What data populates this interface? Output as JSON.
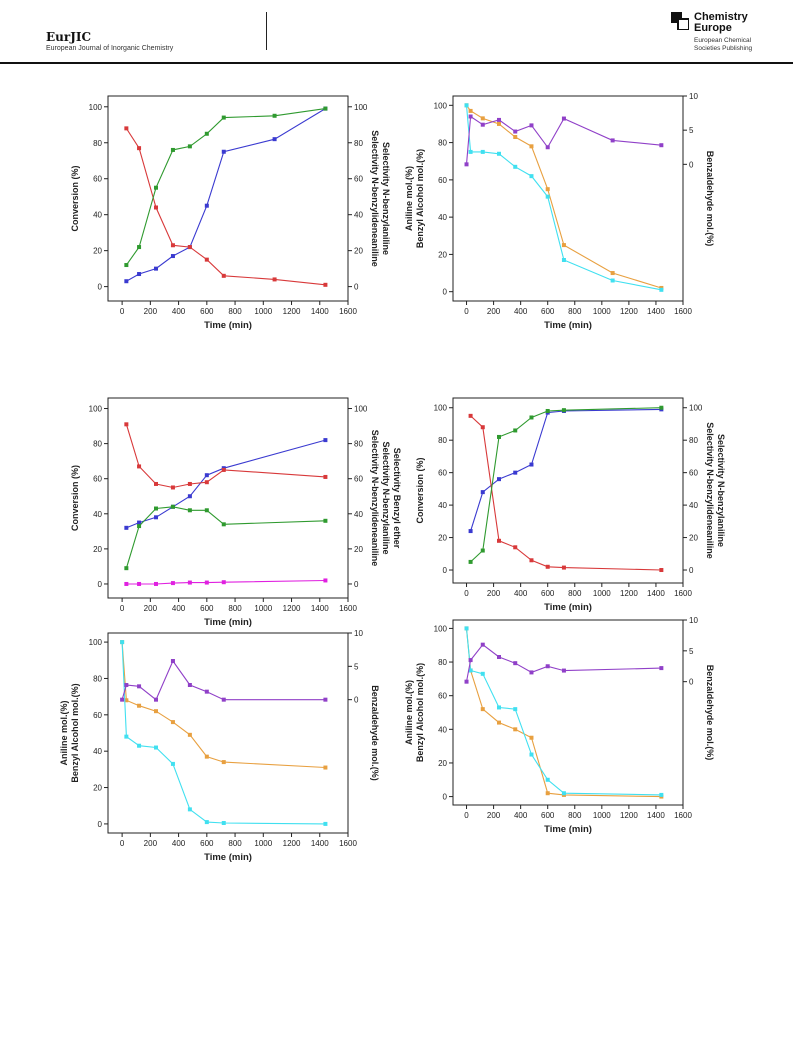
{
  "header": {
    "brand": "EurJIC",
    "subtitle": "European Journal of Inorganic Chemistry",
    "publisher_title_line1": "Chemistry",
    "publisher_title_line2": "Europe",
    "publisher_sub_line1": "European Chemical",
    "publisher_sub_line2": "Societies Publishing"
  },
  "colors": {
    "conversion": "#3a3ad0",
    "n_benzylideneaniline": "#d8393a",
    "n_benzylaniline": "#2f9a2f",
    "benzyl_ether": "#e020e0",
    "aniline": "#e8a040",
    "benzyl_alcohol": "#40e0f0",
    "benzaldehyde": "#9040c8"
  },
  "chart_data": [
    {
      "type": "line",
      "xlabel": "Time (min)",
      "xlim": [
        -100,
        1600
      ],
      "xticks": [
        0,
        200,
        400,
        600,
        800,
        1000,
        1200,
        1400,
        1600
      ],
      "y_left": {
        "label": "Conversion (%)",
        "lim": [
          -8,
          106
        ],
        "ticks": [
          0,
          20,
          40,
          60,
          80,
          100
        ]
      },
      "y_right": {
        "labels": [
          "Selectivity N-benzylideneaniline",
          "Selectivity N-benzylaniline"
        ],
        "lim": [
          -8,
          106
        ],
        "ticks": [
          0,
          20,
          40,
          60,
          80,
          100
        ]
      },
      "series": [
        {
          "name": "Conversion (%)",
          "axis": "left",
          "color_key": "conversion",
          "x": [
            30,
            120,
            240,
            360,
            480,
            600,
            720,
            1080,
            1440
          ],
          "y": [
            3,
            7,
            10,
            17,
            22,
            45,
            75,
            82,
            99
          ]
        },
        {
          "name": "Selectivity N-benzylideneaniline",
          "axis": "right",
          "color_key": "n_benzylideneaniline",
          "x": [
            30,
            120,
            240,
            360,
            480,
            600,
            720,
            1080,
            1440
          ],
          "y": [
            88,
            77,
            44,
            23,
            22,
            15,
            6,
            4,
            1
          ]
        },
        {
          "name": "Selectivity N-benzylaniline",
          "axis": "right",
          "color_key": "n_benzylaniline",
          "x": [
            30,
            120,
            240,
            360,
            480,
            600,
            720,
            1080,
            1440
          ],
          "y": [
            12,
            22,
            55,
            76,
            78,
            85,
            94,
            95,
            99
          ]
        }
      ]
    },
    {
      "type": "line",
      "xlabel": "Time (min)",
      "xlim": [
        -100,
        1600
      ],
      "xticks": [
        0,
        200,
        400,
        600,
        800,
        1000,
        1200,
        1400,
        1600
      ],
      "y_left": {
        "labels": [
          "Aniline mol.(%)",
          "Benzyl Alcohol mol.(%)"
        ],
        "lim": [
          -5,
          105
        ],
        "ticks": [
          0,
          20,
          40,
          60,
          80,
          100
        ]
      },
      "y_right": {
        "label": "Benzaldehyde mol.(%)",
        "lim": [
          -20,
          10
        ],
        "ticks": [
          0,
          5,
          10
        ]
      },
      "series": [
        {
          "name": "Aniline mol.(%)",
          "axis": "left",
          "color_key": "aniline",
          "x": [
            0,
            30,
            120,
            240,
            360,
            480,
            600,
            720,
            1080,
            1440
          ],
          "y": [
            100,
            97,
            93,
            90,
            83,
            78,
            55,
            25,
            10,
            2
          ]
        },
        {
          "name": "Benzyl Alcohol mol.(%)",
          "axis": "left",
          "color_key": "benzyl_alcohol",
          "x": [
            0,
            30,
            120,
            240,
            360,
            480,
            600,
            720,
            1080,
            1440
          ],
          "y": [
            100,
            75,
            75,
            74,
            67,
            62,
            51,
            17,
            6,
            1
          ]
        },
        {
          "name": "Benzaldehyde mol.(%)",
          "axis": "right",
          "color_key": "benzaldehyde",
          "x": [
            0,
            30,
            120,
            240,
            360,
            480,
            600,
            720,
            1080,
            1440
          ],
          "y": [
            0,
            7,
            5.8,
            6.5,
            4.8,
            5.7,
            2.5,
            6.7,
            3.5,
            2.8
          ]
        }
      ]
    },
    {
      "type": "line",
      "xlabel": "Time (min)",
      "xlim": [
        -100,
        1600
      ],
      "xticks": [
        0,
        200,
        400,
        600,
        800,
        1000,
        1200,
        1400,
        1600
      ],
      "y_left": {
        "label": "Conversion (%)",
        "lim": [
          -8,
          106
        ],
        "ticks": [
          0,
          20,
          40,
          60,
          80,
          100
        ]
      },
      "y_right": {
        "labels": [
          "Selectivity N-benzylideneaniline",
          "Selectivity N-benzylaniline",
          "Selectivity Benzyl ether"
        ],
        "lim": [
          -8,
          106
        ],
        "ticks": [
          0,
          20,
          40,
          60,
          80,
          100
        ]
      },
      "series": [
        {
          "name": "Conversion (%)",
          "axis": "left",
          "color_key": "conversion",
          "x": [
            30,
            120,
            240,
            360,
            480,
            600,
            720,
            1440
          ],
          "y": [
            32,
            35,
            38,
            44,
            50,
            62,
            66,
            82
          ]
        },
        {
          "name": "Selectivity N-benzylideneaniline",
          "axis": "right",
          "color_key": "n_benzylideneaniline",
          "x": [
            30,
            120,
            240,
            360,
            480,
            600,
            720,
            1440
          ],
          "y": [
            91,
            67,
            57,
            55,
            57,
            58,
            65,
            61
          ]
        },
        {
          "name": "Selectivity N-benzylaniline",
          "axis": "right",
          "color_key": "n_benzylaniline",
          "x": [
            30,
            120,
            240,
            360,
            480,
            600,
            720,
            1440
          ],
          "y": [
            9,
            33,
            43,
            44,
            42,
            42,
            34,
            36
          ]
        },
        {
          "name": "Selectivity Benzyl ether",
          "axis": "right",
          "color_key": "benzyl_ether",
          "x": [
            30,
            120,
            240,
            360,
            480,
            600,
            720,
            1440
          ],
          "y": [
            0,
            0,
            0,
            0.5,
            0.8,
            0.8,
            1,
            2
          ]
        }
      ]
    },
    {
      "type": "line",
      "xlabel": "Time (min)",
      "xlim": [
        -100,
        1600
      ],
      "xticks": [
        0,
        200,
        400,
        600,
        800,
        1000,
        1200,
        1400,
        1600
      ],
      "y_left": {
        "label": "Conversion (%)",
        "lim": [
          -8,
          106
        ],
        "ticks": [
          0,
          20,
          40,
          60,
          80,
          100
        ]
      },
      "y_right": {
        "labels": [
          "Selectivity N-benzylideneaniline",
          "Selectivity N-benzylaniline"
        ],
        "lim": [
          -8,
          106
        ],
        "ticks": [
          0,
          20,
          40,
          60,
          80,
          100
        ]
      },
      "series": [
        {
          "name": "Conversion (%)",
          "axis": "left",
          "color_key": "conversion",
          "x": [
            30,
            120,
            240,
            360,
            480,
            600,
            720,
            1440
          ],
          "y": [
            24,
            48,
            56,
            60,
            65,
            97,
            98,
            99
          ]
        },
        {
          "name": "Selectivity N-benzylideneaniline",
          "axis": "right",
          "color_key": "n_benzylideneaniline",
          "x": [
            30,
            120,
            240,
            360,
            480,
            600,
            720,
            1440
          ],
          "y": [
            95,
            88,
            18,
            14,
            6,
            2,
            1.5,
            0
          ]
        },
        {
          "name": "Selectivity N-benzylaniline",
          "axis": "right",
          "color_key": "n_benzylaniline",
          "x": [
            30,
            120,
            240,
            360,
            480,
            600,
            720,
            1440
          ],
          "y": [
            5,
            12,
            82,
            86,
            94,
            98,
            98.5,
            100
          ]
        }
      ]
    },
    {
      "type": "line",
      "xlabel": "Time (min)",
      "xlim": [
        -100,
        1600
      ],
      "xticks": [
        0,
        200,
        400,
        600,
        800,
        1000,
        1200,
        1400,
        1600
      ],
      "y_left": {
        "labels": [
          "Aniline mol.(%)",
          "Benzyl Alcohol mol.(%)"
        ],
        "lim": [
          -5,
          105
        ],
        "ticks": [
          0,
          20,
          40,
          60,
          80,
          100
        ]
      },
      "y_right": {
        "label": "Benzaldehyde mol.(%)",
        "lim": [
          -20,
          10
        ],
        "ticks": [
          0,
          5,
          10
        ]
      },
      "series": [
        {
          "name": "Aniline mol.(%)",
          "axis": "left",
          "color_key": "aniline",
          "x": [
            0,
            30,
            120,
            240,
            360,
            480,
            600,
            720,
            1440
          ],
          "y": [
            100,
            68,
            65,
            62,
            56,
            49,
            37,
            34,
            31
          ]
        },
        {
          "name": "Benzyl Alcohol mol.(%)",
          "axis": "left",
          "color_key": "benzyl_alcohol",
          "x": [
            0,
            30,
            120,
            240,
            360,
            480,
            600,
            720,
            1440
          ],
          "y": [
            100,
            48,
            43,
            42,
            33,
            8,
            1,
            0.5,
            0
          ]
        },
        {
          "name": "Benzaldehyde mol.(%)",
          "axis": "right",
          "color_key": "benzaldehyde",
          "x": [
            0,
            30,
            120,
            240,
            360,
            480,
            600,
            720,
            1440
          ],
          "y": [
            0,
            2.2,
            2,
            0,
            5.8,
            2.2,
            1.2,
            0,
            0
          ]
        }
      ]
    },
    {
      "type": "line",
      "xlabel": "Time (min)",
      "xlim": [
        -100,
        1600
      ],
      "xticks": [
        0,
        200,
        400,
        600,
        800,
        1000,
        1200,
        1400,
        1600
      ],
      "y_left": {
        "labels": [
          "Aniline mol.(%)",
          "Benzyl Alcohol mol.(%)"
        ],
        "lim": [
          -5,
          105
        ],
        "ticks": [
          0,
          20,
          40,
          60,
          80,
          100
        ]
      },
      "y_right": {
        "label": "Benzaldehyde mol.(%)",
        "lim": [
          -20,
          10
        ],
        "ticks": [
          0,
          5,
          10
        ]
      },
      "series": [
        {
          "name": "Aniline mol.(%)",
          "axis": "left",
          "color_key": "aniline",
          "x": [
            0,
            30,
            120,
            240,
            360,
            480,
            600,
            720,
            1440
          ],
          "y": [
            100,
            75,
            52,
            44,
            40,
            35,
            2,
            1,
            0
          ]
        },
        {
          "name": "Benzyl Alcohol mol.(%)",
          "axis": "left",
          "color_key": "benzyl_alcohol",
          "x": [
            0,
            30,
            120,
            240,
            360,
            480,
            600,
            720,
            1440
          ],
          "y": [
            100,
            75,
            73,
            53,
            52,
            25,
            10,
            2,
            1
          ]
        },
        {
          "name": "Benzaldehyde mol.(%)",
          "axis": "right",
          "color_key": "benzaldehyde",
          "x": [
            0,
            30,
            120,
            240,
            360,
            480,
            600,
            720,
            1440
          ],
          "y": [
            0,
            3.5,
            6,
            4,
            3,
            1.5,
            2.5,
            1.8,
            2.2
          ]
        }
      ]
    }
  ]
}
